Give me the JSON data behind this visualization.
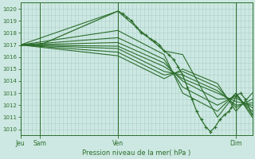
{
  "background_color": "#cde8e2",
  "grid_color": "#aacfc8",
  "line_color": "#2d6e2d",
  "ylim": [
    1009.5,
    1020.5
  ],
  "yticks": [
    1010,
    1011,
    1012,
    1013,
    1014,
    1015,
    1016,
    1017,
    1018,
    1019,
    1020
  ],
  "xlabel": "Pression niveau de la mer( hPa )",
  "xtick_labels": [
    "Jeu",
    "Sam",
    "Ven",
    "Dim"
  ],
  "xtick_pos": [
    0.0,
    0.085,
    0.42,
    0.93
  ],
  "members": [
    {
      "x": [
        0.0,
        0.42,
        0.62,
        0.7,
        0.85,
        0.93,
        1.0
      ],
      "y": [
        1017.0,
        1019.8,
        1016.5,
        1016.2,
        1011.0,
        1013.0,
        1011.0
      ],
      "detail": true
    },
    {
      "x": [
        0.0,
        0.42,
        0.62,
        0.7,
        0.85,
        0.93,
        1.0
      ],
      "y": [
        1017.0,
        1018.2,
        1016.2,
        1013.0,
        1011.5,
        1013.0,
        1011.2
      ],
      "detail": false
    },
    {
      "x": [
        0.0,
        0.42,
        0.62,
        0.7,
        0.85,
        0.93,
        1.0
      ],
      "y": [
        1017.0,
        1017.6,
        1015.8,
        1013.5,
        1012.0,
        1012.8,
        1011.5
      ],
      "detail": false
    },
    {
      "x": [
        0.0,
        0.42,
        0.62,
        0.7,
        0.85,
        0.93,
        1.0
      ],
      "y": [
        1017.0,
        1017.2,
        1015.5,
        1014.0,
        1012.5,
        1012.6,
        1011.8
      ],
      "detail": false
    },
    {
      "x": [
        0.0,
        0.42,
        0.62,
        0.7,
        0.85,
        0.93,
        1.0
      ],
      "y": [
        1017.0,
        1016.9,
        1015.2,
        1014.2,
        1013.0,
        1012.3,
        1012.0
      ],
      "detail": false
    },
    {
      "x": [
        0.0,
        0.42,
        0.62,
        0.7,
        0.85,
        0.93,
        1.0
      ],
      "y": [
        1017.0,
        1016.7,
        1014.8,
        1014.5,
        1013.2,
        1012.0,
        1012.2
      ],
      "detail": false
    },
    {
      "x": [
        0.0,
        0.42,
        0.62,
        0.7,
        0.85,
        0.93,
        1.0
      ],
      "y": [
        1017.0,
        1016.4,
        1014.5,
        1014.8,
        1013.5,
        1011.8,
        1012.5
      ],
      "detail": false
    },
    {
      "x": [
        0.0,
        0.42,
        0.62,
        0.7,
        0.85,
        0.93,
        1.0
      ],
      "y": [
        1017.0,
        1016.1,
        1014.2,
        1015.0,
        1013.8,
        1011.5,
        1013.0
      ],
      "detail": false
    }
  ],
  "main_x": [
    0.0,
    0.085,
    0.42,
    0.44,
    0.46,
    0.48,
    0.5,
    0.52,
    0.54,
    0.56,
    0.58,
    0.6,
    0.62,
    0.64,
    0.66,
    0.68,
    0.7,
    0.72,
    0.74,
    0.76,
    0.78,
    0.8,
    0.82,
    0.84,
    0.86,
    0.88,
    0.9,
    0.91,
    0.93,
    0.95,
    0.97,
    1.0
  ],
  "main_y": [
    1017.0,
    1017.0,
    1019.8,
    1019.6,
    1019.3,
    1019.0,
    1018.5,
    1018.0,
    1017.8,
    1017.5,
    1017.3,
    1017.0,
    1016.5,
    1016.2,
    1015.8,
    1015.2,
    1014.5,
    1013.5,
    1012.5,
    1011.5,
    1010.8,
    1010.2,
    1009.8,
    1010.2,
    1010.8,
    1011.2,
    1011.5,
    1011.8,
    1012.8,
    1013.0,
    1012.5,
    1011.2
  ]
}
